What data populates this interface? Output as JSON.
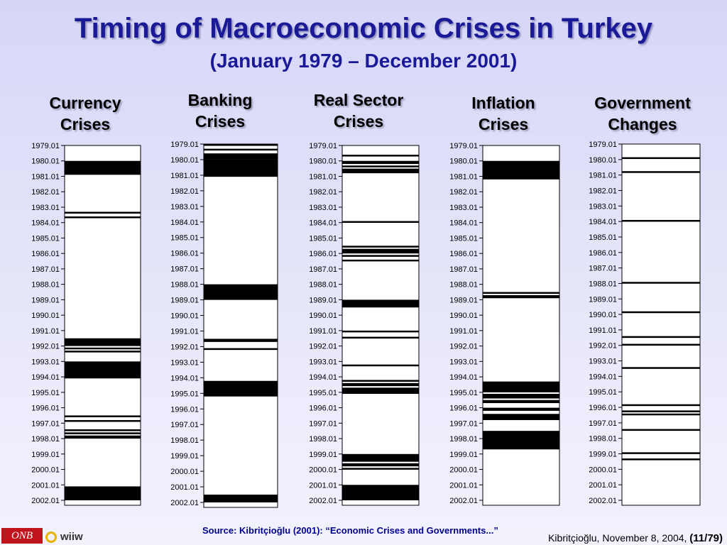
{
  "title": "Timing of Macroeconomic Crises in Turkey",
  "subtitle": "(January 1979 – December 2001)",
  "source": "Source: Kibritçioğlu (2001): “Economic Crises and Governments...”",
  "credit": "Kibritçioğlu, November 8, 2004,",
  "page_ref": "(11/79)",
  "logos": {
    "onb": "ONB",
    "wiiw": "wiiw"
  },
  "colors": {
    "title": "#1a1a99",
    "bar_fill": "#000000",
    "track": "#ffffff"
  },
  "chart_data": {
    "type": "timeline",
    "x_ticks": [
      "1979.01",
      "1980.01",
      "1981.01",
      "1982.01",
      "1983.01",
      "1984.01",
      "1985.01",
      "1986.01",
      "1987.01",
      "1988.01",
      "1989.01",
      "1990.01",
      "1991.01",
      "1992.01",
      "1993.01",
      "1994.01",
      "1995.01",
      "1996.01",
      "1997.01",
      "1998.01",
      "1999.01",
      "2000.01",
      "2001.01",
      "2002.01"
    ],
    "range": [
      1979.0,
      2002.0
    ],
    "series": [
      {
        "name": "Currency Crises",
        "name_lines": [
          "Currency",
          "Crises"
        ],
        "periods": [
          [
            1980.0,
            1980.9
          ],
          [
            1983.3,
            1983.4
          ],
          [
            1983.6,
            1983.7
          ],
          [
            1991.5,
            1992.0
          ],
          [
            1992.1,
            1992.2
          ],
          [
            1992.3,
            1992.4
          ],
          [
            1993.0,
            1994.1
          ],
          [
            1996.5,
            1996.6
          ],
          [
            1996.8,
            1996.9
          ],
          [
            1997.4,
            1997.5
          ],
          [
            1997.6,
            1997.7
          ],
          [
            1997.8,
            1998.0
          ],
          [
            2001.1,
            2002.0
          ]
        ]
      },
      {
        "name": "Banking Crises",
        "name_lines": [
          "Banking",
          "Crises"
        ],
        "periods": [
          [
            1979.0,
            1979.1
          ],
          [
            1979.3,
            1979.4
          ],
          [
            1979.6,
            1980.0
          ],
          [
            1980.0,
            1981.1
          ],
          [
            1988.0,
            1989.0
          ],
          [
            1991.5,
            1991.7
          ],
          [
            1992.1,
            1992.2
          ],
          [
            1994.2,
            1995.2
          ],
          [
            2001.5,
            2002.0
          ]
        ]
      },
      {
        "name": "Real Sector Crises",
        "name_lines": [
          "Real Sector",
          "Crises"
        ],
        "periods": [
          [
            1979.6,
            1979.7
          ],
          [
            1980.0,
            1980.2
          ],
          [
            1980.3,
            1980.4
          ],
          [
            1980.5,
            1980.8
          ],
          [
            1983.9,
            1984.0
          ],
          [
            1985.5,
            1985.6
          ],
          [
            1985.7,
            1986.0
          ],
          [
            1986.1,
            1986.2
          ],
          [
            1986.4,
            1986.5
          ],
          [
            1989.0,
            1989.5
          ],
          [
            1991.0,
            1991.1
          ],
          [
            1991.4,
            1991.5
          ],
          [
            1993.2,
            1993.3
          ],
          [
            1994.2,
            1994.3
          ],
          [
            1994.4,
            1994.6
          ],
          [
            1994.7,
            1995.1
          ],
          [
            1999.0,
            1999.5
          ],
          [
            1999.6,
            1999.8
          ],
          [
            1999.9,
            2000.0
          ],
          [
            2001.0,
            2001.1
          ],
          [
            2001.1,
            2002.0
          ]
        ]
      },
      {
        "name": "Inflation Crises",
        "name_lines": [
          "Inflation",
          "Crises"
        ],
        "periods": [
          [
            1980.0,
            1981.2
          ],
          [
            1988.5,
            1988.6
          ],
          [
            1988.7,
            1988.9
          ],
          [
            1994.3,
            1995.0
          ],
          [
            1995.1,
            1995.4
          ],
          [
            1995.5,
            1995.7
          ],
          [
            1996.0,
            1996.2
          ],
          [
            1996.4,
            1996.8
          ],
          [
            1997.5,
            1998.7
          ]
        ]
      },
      {
        "name": "Government Changes",
        "name_lines": [
          "Government",
          "Changes"
        ],
        "periods": [
          [
            1979.85,
            1979.95
          ],
          [
            1980.75,
            1980.85
          ],
          [
            1983.9,
            1984.0
          ],
          [
            1987.9,
            1988.0
          ],
          [
            1989.8,
            1989.9
          ],
          [
            1991.4,
            1991.5
          ],
          [
            1991.9,
            1992.0
          ],
          [
            1993.4,
            1993.45
          ],
          [
            1995.8,
            1995.9
          ],
          [
            1996.2,
            1996.3
          ],
          [
            1996.4,
            1996.5
          ],
          [
            1997.4,
            1997.5
          ],
          [
            1998.9,
            1999.0
          ],
          [
            1999.3,
            1999.4
          ]
        ]
      }
    ]
  }
}
